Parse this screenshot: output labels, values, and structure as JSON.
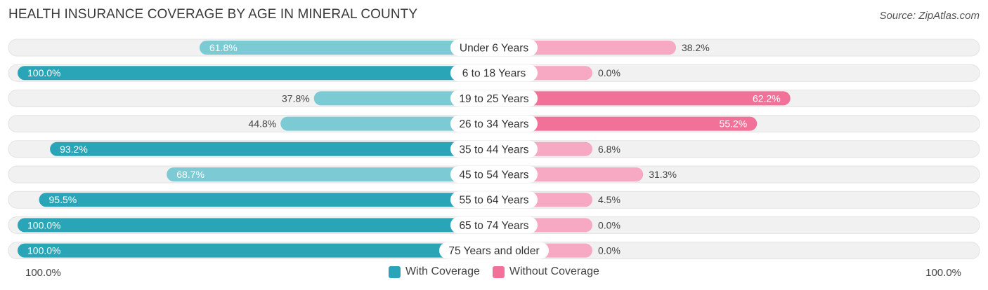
{
  "title": "HEALTH INSURANCE COVERAGE BY AGE IN MINERAL COUNTY",
  "source": "Source: ZipAtlas.com",
  "colors": {
    "with_dark": "#2aa5b7",
    "with_light": "#7ccad4",
    "without_dark": "#f27199",
    "without_light": "#f7a8c2",
    "track": "#f1f1f1"
  },
  "axis": {
    "left_label": "100.0%",
    "right_label": "100.0%"
  },
  "legend": {
    "with_label": "With Coverage",
    "without_label": "Without Coverage"
  },
  "chart_data": {
    "type": "bar",
    "orientation": "horizontal-diverging",
    "title": "HEALTH INSURANCE COVERAGE BY AGE IN MINERAL COUNTY",
    "categories": [
      "Under 6 Years",
      "6 to 18 Years",
      "19 to 25 Years",
      "26 to 34 Years",
      "35 to 44 Years",
      "45 to 54 Years",
      "55 to 64 Years",
      "65 to 74 Years",
      "75 Years and older"
    ],
    "series": [
      {
        "name": "With Coverage",
        "values": [
          61.8,
          100.0,
          37.8,
          44.8,
          93.2,
          68.7,
          95.5,
          100.0,
          100.0
        ]
      },
      {
        "name": "Without Coverage",
        "values": [
          38.2,
          0.0,
          62.2,
          55.2,
          6.8,
          31.3,
          4.5,
          0.0,
          0.0
        ]
      }
    ],
    "value_labels": {
      "with": [
        "61.8%",
        "100.0%",
        "37.8%",
        "44.8%",
        "93.2%",
        "68.7%",
        "95.5%",
        "100.0%",
        "100.0%"
      ],
      "without": [
        "38.2%",
        "0.0%",
        "62.2%",
        "55.2%",
        "6.8%",
        "31.3%",
        "4.5%",
        "0.0%",
        "0.0%"
      ]
    },
    "xlim": [
      -100,
      100
    ],
    "legend_position": "bottom-center"
  }
}
